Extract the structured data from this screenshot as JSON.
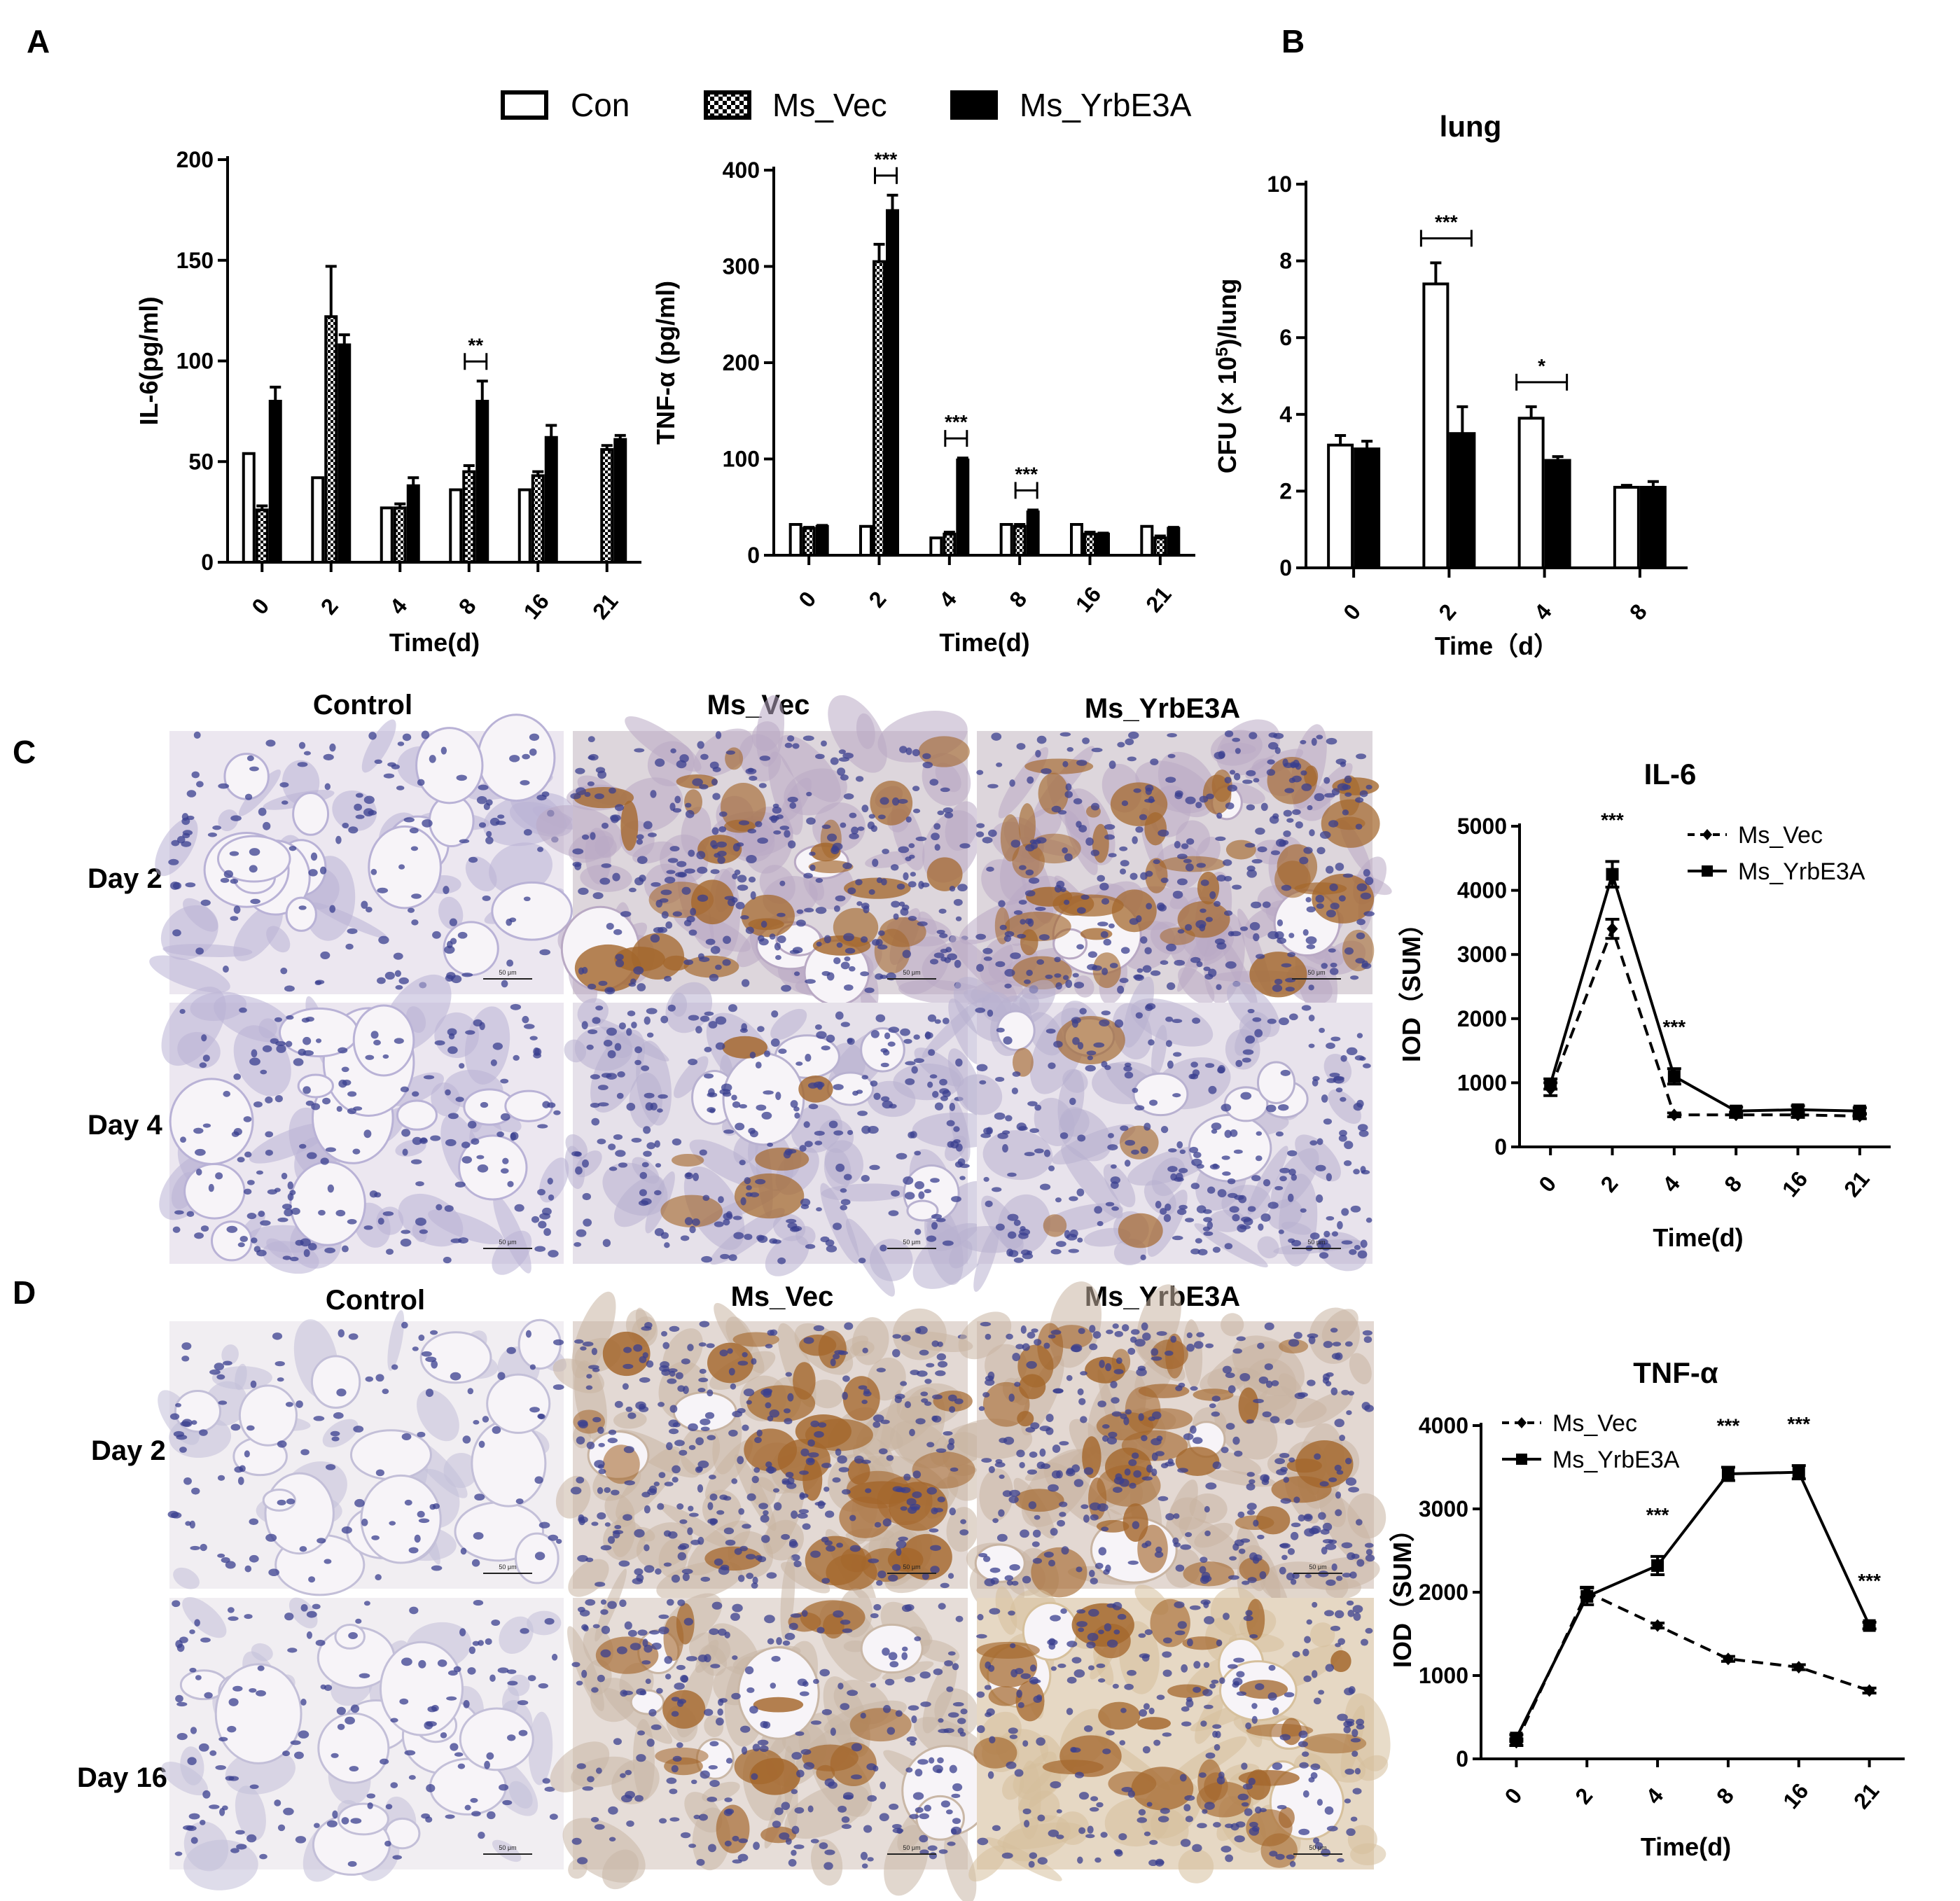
{
  "panels": {
    "A": "A",
    "B": "B",
    "C": "C",
    "D": "D"
  },
  "legend_top": {
    "items": [
      "Con",
      "Ms_Vec",
      "Ms_YrbE3A"
    ]
  },
  "micro_C": {
    "col_labels": [
      "Control",
      "Ms_Vec",
      "Ms_YrbE3A"
    ],
    "row_labels": [
      "Day 2",
      "Day 4"
    ],
    "scale_label": "50 μm"
  },
  "micro_D": {
    "col_labels": [
      "Control",
      "Ms_Vec",
      "Ms_YrbE3A"
    ],
    "row_labels": [
      "Day 2",
      "Day 16"
    ],
    "scale_label": "50 μm"
  },
  "colors": {
    "brown_stain": "#a4672c",
    "nuclei_blue": "#3a3f8f",
    "background_tissue": "#e9e4ec"
  },
  "chart_data": [
    {
      "id": "il6_serum",
      "type": "bar",
      "title": "",
      "xlabel": "Time(d)",
      "ylabel": "IL-6(pg/ml)",
      "ylim": [
        0,
        200
      ],
      "yticks": [
        0,
        50,
        100,
        150,
        200
      ],
      "categories": [
        "0",
        "2",
        "4",
        "8",
        "16",
        "21"
      ],
      "series": [
        {
          "name": "Con",
          "values": [
            54,
            42,
            27,
            36,
            36,
            0
          ],
          "errors": [
            0,
            0,
            0,
            0,
            0,
            0
          ]
        },
        {
          "name": "Ms_Vec",
          "values": [
            26,
            122,
            27,
            45,
            43,
            56
          ],
          "errors": [
            2,
            25,
            2,
            3,
            2,
            2
          ]
        },
        {
          "name": "Ms_YrbE3A",
          "values": [
            80,
            108,
            38,
            80,
            62,
            61
          ],
          "errors": [
            7,
            5,
            4,
            10,
            6,
            2
          ]
        }
      ],
      "significance": [
        {
          "category": "8",
          "label": "**"
        }
      ]
    },
    {
      "id": "tnf_serum",
      "type": "bar",
      "title": "",
      "xlabel": "Time(d)",
      "ylabel": "TNF-α  (pg/ml)",
      "ylim": [
        0,
        400
      ],
      "yticks": [
        0,
        100,
        200,
        300,
        400
      ],
      "categories": [
        "0",
        "2",
        "4",
        "8",
        "16",
        "21"
      ],
      "series": [
        {
          "name": "Con",
          "values": [
            32,
            30,
            18,
            32,
            32,
            30
          ],
          "errors": [
            0,
            0,
            0,
            0,
            0,
            0
          ]
        },
        {
          "name": "Ms_Vec",
          "values": [
            28,
            305,
            22,
            30,
            22,
            18
          ],
          "errors": [
            1,
            18,
            2,
            2,
            2,
            2
          ]
        },
        {
          "name": "Ms_YrbE3A",
          "values": [
            30,
            358,
            99,
            45,
            22,
            28
          ],
          "errors": [
            1,
            16,
            2,
            2,
            1,
            1
          ]
        }
      ],
      "significance": [
        {
          "category": "2",
          "label": "***"
        },
        {
          "category": "4",
          "label": "***"
        },
        {
          "category": "8",
          "label": "***"
        }
      ]
    },
    {
      "id": "cfu_lung",
      "type": "bar",
      "title": "lung",
      "xlabel": "Time（d）",
      "ylabel_parts": [
        "CFU (× 10",
        "5",
        ")/lung"
      ],
      "ylim": [
        0,
        10
      ],
      "yticks": [
        0,
        2,
        4,
        6,
        8,
        10
      ],
      "categories": [
        "0",
        "2",
        "4",
        "8"
      ],
      "series": [
        {
          "name": "Con",
          "values": [
            3.2,
            7.4,
            3.9,
            2.1
          ],
          "errors": [
            0.25,
            0.55,
            0.3,
            0.05
          ]
        },
        {
          "name": "Ms_YrbE3A",
          "values": [
            3.1,
            3.5,
            2.8,
            2.1
          ],
          "errors": [
            0.2,
            0.7,
            0.1,
            0.15
          ]
        }
      ],
      "significance": [
        {
          "category": "2",
          "label": "***"
        },
        {
          "category": "4",
          "label": "*"
        }
      ]
    },
    {
      "id": "il6_iod",
      "type": "line",
      "title": "IL-6",
      "xlabel": "Time(d)",
      "ylabel": "IOD（SUM）",
      "ylim": [
        0,
        5000
      ],
      "yticks": [
        0,
        1000,
        2000,
        3000,
        4000,
        5000
      ],
      "categories": [
        "0",
        "2",
        "4",
        "8",
        "16",
        "21"
      ],
      "series": [
        {
          "name": "Ms_Vec",
          "values": [
            900,
            3400,
            500,
            500,
            500,
            480
          ],
          "errors": [
            100,
            150,
            30,
            40,
            40,
            40
          ]
        },
        {
          "name": "Ms_YrbE3A",
          "values": [
            980,
            4250,
            1100,
            560,
            580,
            560
          ],
          "errors": [
            80,
            200,
            120,
            60,
            60,
            50
          ]
        }
      ],
      "significance": [
        {
          "category": "2",
          "label": "***"
        },
        {
          "category": "4",
          "label": "***"
        }
      ]
    },
    {
      "id": "tnf_iod",
      "type": "line",
      "title": "TNF-α",
      "xlabel": "Time(d)",
      "ylabel": "IOD（SUM）",
      "ylim": [
        0,
        4000
      ],
      "yticks": [
        0,
        1000,
        2000,
        3000,
        4000
      ],
      "categories": [
        "0",
        "2",
        "4",
        "8",
        "16",
        "21"
      ],
      "series": [
        {
          "name": "Ms_Vec",
          "values": [
            200,
            2000,
            1600,
            1200,
            1100,
            820
          ],
          "errors": [
            40,
            60,
            30,
            30,
            30,
            30
          ]
        },
        {
          "name": "Ms_YrbE3A",
          "values": [
            250,
            1950,
            2320,
            3420,
            3440,
            1600
          ],
          "errors": [
            40,
            100,
            110,
            80,
            80,
            40
          ]
        }
      ],
      "significance": [
        {
          "category": "4",
          "label": "***"
        },
        {
          "category": "8",
          "label": "***"
        },
        {
          "category": "16",
          "label": "***"
        },
        {
          "category": "21",
          "label": "***"
        }
      ]
    }
  ]
}
